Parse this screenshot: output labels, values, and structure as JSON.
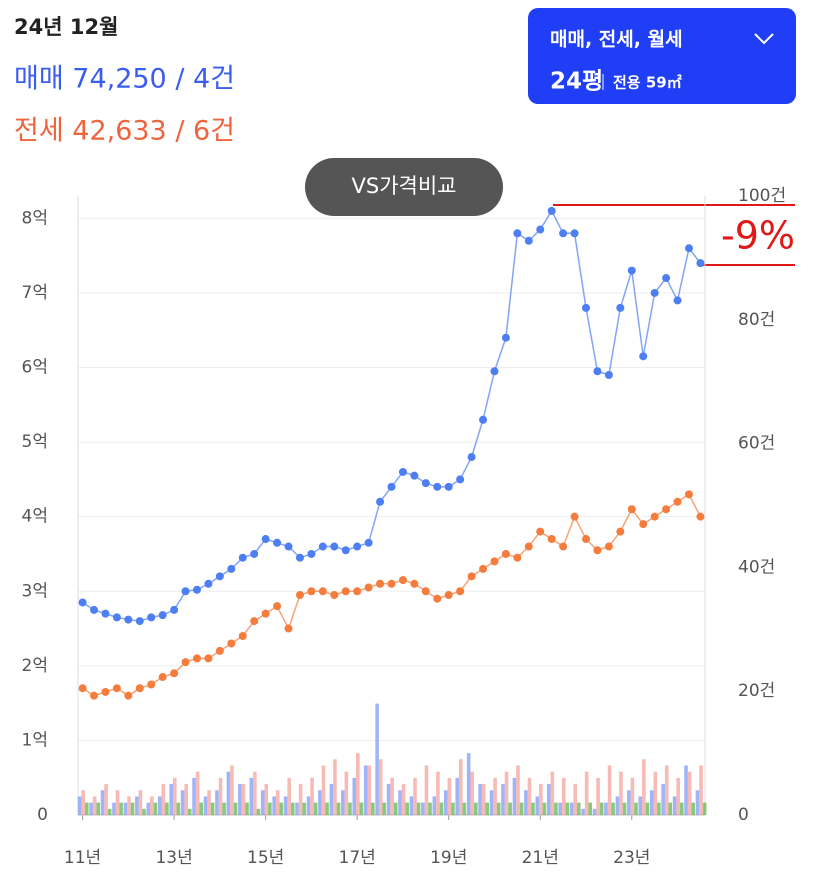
{
  "header": {
    "date": "24년 12월",
    "sale": "매매 74,250 / 4건",
    "jeonse": "전세 42,633 / 6건"
  },
  "filter": {
    "types": "매매, 전세, 월세",
    "size": "24평",
    "area": "전용 59㎡"
  },
  "compare_button": "VS가격비교",
  "chart_data": {
    "type": "line",
    "annotation": "-9%",
    "x": [
      2011,
      2011.25,
      2011.5,
      2011.75,
      2012,
      2012.25,
      2012.5,
      2012.75,
      2013,
      2013.25,
      2013.5,
      2013.75,
      2014,
      2014.25,
      2014.5,
      2014.75,
      2015,
      2015.25,
      2015.5,
      2015.75,
      2016,
      2016.25,
      2016.5,
      2016.75,
      2017,
      2017.25,
      2017.5,
      2017.75,
      2018,
      2018.25,
      2018.5,
      2018.75,
      2019,
      2019.25,
      2019.5,
      2019.75,
      2020,
      2020.25,
      2020.5,
      2020.75,
      2021,
      2021.25,
      2021.5,
      2021.75,
      2022,
      2022.25,
      2022.5,
      2022.75,
      2023,
      2023.25,
      2023.5,
      2023.75,
      2024,
      2024.25,
      2024.5
    ],
    "series": [
      {
        "type": "bar",
        "axis": "y2",
        "color": "#7f9cf5",
        "values": [
          3,
          2,
          4,
          2,
          2,
          3,
          2,
          3,
          5,
          4,
          6,
          3,
          4,
          7,
          5,
          6,
          4,
          3,
          3,
          2,
          3,
          4,
          5,
          4,
          6,
          8,
          18,
          5,
          4,
          3,
          2,
          3,
          4,
          6,
          10,
          5,
          4,
          5,
          6,
          4,
          3,
          5,
          2,
          2,
          1,
          1,
          2,
          3,
          4,
          3,
          4,
          5,
          3,
          8,
          4
        ]
      },
      {
        "type": "bar",
        "axis": "y2",
        "color": "#f4a39b",
        "values": [
          4,
          3,
          5,
          4,
          3,
          4,
          3,
          5,
          6,
          5,
          7,
          4,
          6,
          8,
          5,
          7,
          5,
          4,
          6,
          5,
          6,
          8,
          9,
          7,
          10,
          8,
          9,
          6,
          5,
          6,
          8,
          7,
          6,
          9,
          7,
          5,
          6,
          7,
          8,
          6,
          5,
          7,
          6,
          5,
          7,
          6,
          8,
          7,
          6,
          9,
          7,
          8,
          6,
          7,
          8
        ]
      },
      {
        "type": "bar",
        "axis": "y2",
        "color": "#5fb84f",
        "values": [
          2,
          2,
          1,
          2,
          2,
          1,
          2,
          2,
          2,
          1,
          2,
          2,
          2,
          2,
          2,
          1,
          2,
          2,
          2,
          2,
          2,
          2,
          2,
          2,
          2,
          2,
          2,
          2,
          2,
          2,
          2,
          2,
          2,
          2,
          2,
          2,
          2,
          2,
          2,
          2,
          2,
          2,
          2,
          2,
          2,
          2,
          2,
          2,
          2,
          2,
          2,
          2,
          2,
          2,
          2
        ]
      },
      {
        "type": "line",
        "color": "#4d7ff2",
        "values": [
          2.85,
          2.75,
          2.7,
          2.65,
          2.62,
          2.6,
          2.65,
          2.68,
          2.75,
          3.0,
          3.02,
          3.1,
          3.2,
          3.3,
          3.45,
          3.5,
          3.7,
          3.65,
          3.6,
          3.45,
          3.5,
          3.6,
          3.6,
          3.55,
          3.6,
          3.65,
          4.2,
          4.4,
          4.6,
          4.55,
          4.45,
          4.4,
          4.4,
          4.5,
          4.8,
          5.3,
          5.95,
          6.4,
          7.8,
          7.7,
          7.85,
          8.1,
          7.8,
          7.8,
          6.8,
          5.95,
          5.9,
          6.8,
          7.3,
          6.15,
          7.0,
          7.2,
          6.9,
          7.6,
          7.4
        ]
      },
      {
        "type": "line",
        "color": "#f47c3c",
        "values": [
          1.7,
          1.6,
          1.65,
          1.7,
          1.6,
          1.7,
          1.75,
          1.85,
          1.9,
          2.05,
          2.1,
          2.1,
          2.2,
          2.3,
          2.4,
          2.6,
          2.7,
          2.8,
          2.5,
          2.95,
          3.0,
          3.0,
          2.95,
          3.0,
          3.0,
          3.05,
          3.1,
          3.1,
          3.15,
          3.1,
          3.0,
          2.9,
          2.95,
          3.0,
          3.2,
          3.3,
          3.4,
          3.5,
          3.45,
          3.6,
          3.8,
          3.7,
          3.6,
          4.0,
          3.7,
          3.55,
          3.6,
          3.8,
          4.1,
          3.9,
          4.0,
          4.1,
          4.2,
          4.3,
          4.0
        ]
      }
    ],
    "xlim": [
      2010.9,
      2024.6
    ],
    "xticks": [
      {
        "value": 2011,
        "label": "11년"
      },
      {
        "value": 2013,
        "label": "13년"
      },
      {
        "value": 2015,
        "label": "15년"
      },
      {
        "value": 2017,
        "label": "17년"
      },
      {
        "value": 2019,
        "label": "19년"
      },
      {
        "value": 2021,
        "label": "21년"
      },
      {
        "value": 2023,
        "label": "23년"
      }
    ],
    "ylim": [
      0,
      8.3
    ],
    "yticks": [
      0,
      {
        "value": 1,
        "label": "1억"
      },
      {
        "value": 2,
        "label": "2억"
      },
      {
        "value": 3,
        "label": "3억"
      },
      {
        "value": 4,
        "label": "4억"
      },
      {
        "value": 5,
        "label": "5억"
      },
      {
        "value": 6,
        "label": "6억"
      },
      {
        "value": 7,
        "label": "7억"
      },
      {
        "value": 8,
        "label": "8억"
      }
    ],
    "y2lim": [
      0,
      100
    ],
    "y2ticks": [
      0,
      {
        "value": 20,
        "label": "20건"
      },
      {
        "value": 40,
        "label": "40건"
      },
      {
        "value": 60,
        "label": "60건"
      },
      {
        "value": 80,
        "label": "80건"
      },
      {
        "value": 100,
        "label": "100건"
      }
    ],
    "grid": true
  }
}
